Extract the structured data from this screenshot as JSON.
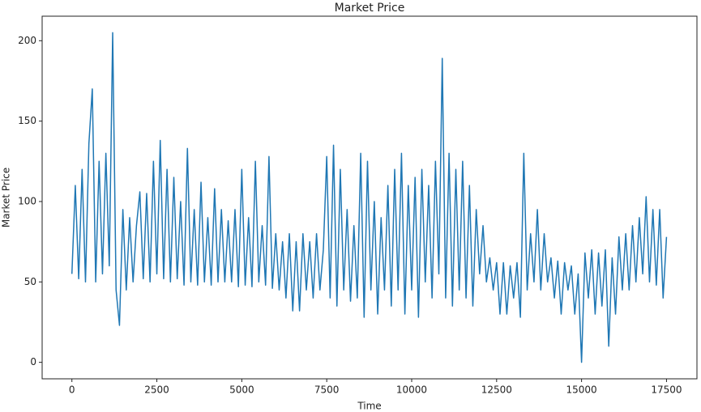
{
  "chart_data": {
    "type": "line",
    "title": "Market Price",
    "x_label": "Time",
    "y_label": "Market Price",
    "x": [
      0,
      100,
      200,
      300,
      400,
      500,
      600,
      700,
      800,
      900,
      1000,
      1100,
      1200,
      1300,
      1400,
      1500,
      1600,
      1700,
      1800,
      1900,
      2000,
      2100,
      2200,
      2300,
      2400,
      2500,
      2600,
      2700,
      2800,
      2900,
      3000,
      3100,
      3200,
      3300,
      3400,
      3500,
      3600,
      3700,
      3800,
      3900,
      4000,
      4100,
      4200,
      4300,
      4400,
      4500,
      4600,
      4700,
      4800,
      4900,
      5000,
      5100,
      5200,
      5300,
      5400,
      5500,
      5600,
      5700,
      5800,
      5900,
      6000,
      6100,
      6200,
      6300,
      6400,
      6500,
      6600,
      6700,
      6800,
      6900,
      7000,
      7100,
      7200,
      7300,
      7400,
      7500,
      7600,
      7700,
      7800,
      7900,
      8000,
      8100,
      8200,
      8300,
      8400,
      8500,
      8600,
      8700,
      8800,
      8900,
      9000,
      9100,
      9200,
      9300,
      9400,
      9500,
      9600,
      9700,
      9800,
      9900,
      10000,
      10100,
      10200,
      10300,
      10400,
      10500,
      10600,
      10700,
      10800,
      10900,
      11000,
      11100,
      11200,
      11300,
      11400,
      11500,
      11600,
      11700,
      11800,
      11900,
      12000,
      12100,
      12200,
      12300,
      12400,
      12500,
      12600,
      12700,
      12800,
      12900,
      13000,
      13100,
      13200,
      13300,
      13400,
      13500,
      13600,
      13700,
      13800,
      13900,
      14000,
      14100,
      14200,
      14300,
      14400,
      14500,
      14600,
      14700,
      14800,
      14900,
      15000,
      15100,
      15200,
      15300,
      15400,
      15500,
      15600,
      15700,
      15800,
      15900,
      16000,
      16100,
      16200,
      16300,
      16400,
      16500,
      16600,
      16700,
      16800,
      16900,
      17000,
      17100,
      17200,
      17300,
      17400,
      17500
    ],
    "series": [
      {
        "name": "Market Price",
        "color": "#1f77b4",
        "values": [
          55,
          110,
          52,
          120,
          50,
          136,
          170,
          50,
          125,
          55,
          130,
          60,
          205,
          45,
          23,
          95,
          45,
          90,
          50,
          85,
          106,
          52,
          105,
          50,
          125,
          55,
          138,
          52,
          120,
          50,
          115,
          52,
          100,
          48,
          133,
          50,
          95,
          48,
          112,
          50,
          90,
          48,
          108,
          50,
          95,
          50,
          88,
          50,
          95,
          47,
          120,
          48,
          90,
          47,
          125,
          50,
          85,
          48,
          128,
          46,
          80,
          45,
          75,
          40,
          80,
          32,
          75,
          32,
          80,
          45,
          75,
          40,
          80,
          45,
          70,
          128,
          40,
          135,
          35,
          120,
          45,
          95,
          38,
          85,
          40,
          130,
          28,
          125,
          45,
          100,
          30,
          90,
          45,
          110,
          35,
          120,
          45,
          130,
          30,
          110,
          45,
          115,
          28,
          120,
          50,
          110,
          40,
          125,
          55,
          189,
          40,
          130,
          35,
          120,
          45,
          125,
          40,
          110,
          35,
          95,
          55,
          85,
          50,
          65,
          45,
          62,
          30,
          62,
          30,
          60,
          40,
          62,
          28,
          130,
          45,
          80,
          50,
          95,
          45,
          80,
          50,
          65,
          40,
          63,
          30,
          62,
          45,
          60,
          30,
          55,
          0,
          68,
          40,
          70,
          30,
          68,
          35,
          70,
          10,
          65,
          30,
          78,
          45,
          80,
          45,
          85,
          50,
          90,
          55,
          103,
          50,
          95,
          48,
          95,
          40,
          78
        ]
      }
    ],
    "xlim": [
      -876,
      18396
    ],
    "ylim": [
      -10.25,
      215.25
    ],
    "xticks": [
      0,
      2500,
      5000,
      7500,
      10000,
      12500,
      15000,
      17500
    ],
    "yticks": [
      0,
      50,
      100,
      150,
      200
    ]
  }
}
